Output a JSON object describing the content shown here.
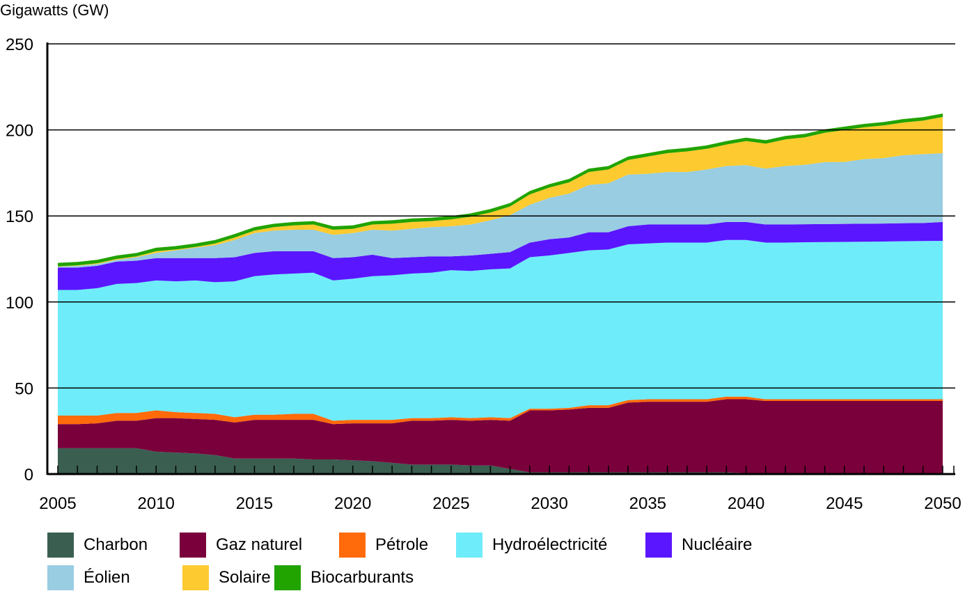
{
  "chart_data": {
    "type": "area",
    "stacked": true,
    "title": "",
    "xlabel": "",
    "ylabel": "Gigawatts (GW)",
    "xlim": [
      2005,
      2050
    ],
    "ylim": [
      0,
      250
    ],
    "grid": true,
    "legend_position": "bottom",
    "x_ticks": [
      "2005",
      "2010",
      "2015",
      "2020",
      "2025",
      "2030",
      "2035",
      "2040",
      "2045",
      "2050"
    ],
    "y_ticks": [
      "0",
      "50",
      "100",
      "150",
      "200",
      "250"
    ],
    "x": [
      2005,
      2006,
      2007,
      2008,
      2009,
      2010,
      2011,
      2012,
      2013,
      2014,
      2015,
      2016,
      2017,
      2018,
      2019,
      2020,
      2021,
      2022,
      2023,
      2024,
      2025,
      2026,
      2027,
      2028,
      2029,
      2030,
      2031,
      2032,
      2033,
      2034,
      2035,
      2036,
      2037,
      2038,
      2039,
      2040,
      2041,
      2042,
      2043,
      2044,
      2045,
      2046,
      2047,
      2048,
      2049,
      2050
    ],
    "series": [
      {
        "name": "Charbon",
        "color": "#3a5e50",
        "values": [
          15,
          15,
          15,
          15,
          15,
          13,
          12.5,
          12,
          11,
          9,
          9,
          9,
          9,
          8.5,
          8.5,
          8,
          7.5,
          6.5,
          5.5,
          5.5,
          5.5,
          5,
          5,
          3,
          1,
          1,
          1,
          1,
          1,
          1,
          1,
          1,
          1,
          1,
          1,
          0.5,
          0,
          0,
          0,
          0,
          0,
          0,
          0,
          0,
          0,
          0
        ]
      },
      {
        "name": "Gaz naturel",
        "color": "#7a003c",
        "values": [
          14,
          14,
          14.5,
          16,
          16,
          19.5,
          20,
          20,
          20.5,
          21,
          22.5,
          22.5,
          22.5,
          23,
          20.5,
          21.5,
          22,
          23,
          25.5,
          25.5,
          26,
          26,
          26.5,
          28,
          36,
          36,
          36.5,
          37.5,
          37.5,
          40.5,
          41,
          41,
          41,
          41,
          42.5,
          43,
          42.5,
          42.5,
          42.5,
          42.5,
          42.5,
          42.5,
          42.5,
          42.5,
          42.5,
          42.5
        ]
      },
      {
        "name": "Pétrole",
        "color": "#ff6a0a",
        "values": [
          5,
          5,
          4.5,
          4.5,
          4.5,
          4.5,
          3.5,
          3.5,
          3.5,
          3,
          3,
          3,
          3.5,
          3.5,
          2,
          2,
          2,
          2,
          1.5,
          1.5,
          1.5,
          1.5,
          1.5,
          1.5,
          1,
          1,
          1,
          1.5,
          1.5,
          1.5,
          1.5,
          1.5,
          1.5,
          1.5,
          1.5,
          1.5,
          1,
          1,
          1,
          1,
          1,
          1,
          1,
          1,
          1,
          1
        ]
      },
      {
        "name": "Hydroélectricité",
        "color": "#6eecf9",
        "values": [
          73,
          73,
          74,
          75,
          75.5,
          75.5,
          76,
          77,
          76.5,
          79,
          80.5,
          81.5,
          81.5,
          82,
          81.5,
          82,
          83.5,
          84,
          84,
          84.5,
          85.5,
          85.5,
          86,
          87,
          88,
          89,
          90,
          90,
          90.5,
          90.5,
          90.5,
          91,
          91,
          91,
          91,
          91,
          91,
          91,
          91.2,
          91.3,
          91.4,
          91.5,
          91.6,
          91.8,
          91.9,
          92
        ]
      },
      {
        "name": "Nucléaire",
        "color": "#5a16ff",
        "values": [
          13,
          13,
          13,
          13,
          13,
          13,
          13.5,
          13,
          14,
          14,
          13.5,
          13.5,
          13,
          12.5,
          13,
          12.5,
          12.5,
          10,
          9.5,
          9.5,
          8,
          9,
          9,
          9.5,
          8.5,
          9.5,
          9,
          10.5,
          10,
          10.5,
          11,
          10.5,
          10.5,
          10.5,
          10.5,
          10.5,
          10.5,
          10.5,
          10.5,
          10.5,
          10.5,
          10.5,
          10.5,
          10.5,
          10.5,
          11
        ]
      },
      {
        "name": "Éolien",
        "color": "#98cde2",
        "values": [
          0.5,
          1,
          1,
          1,
          2,
          3,
          4.5,
          6,
          7.5,
          10,
          11.5,
          12,
          12.5,
          12.5,
          13.5,
          14,
          14.5,
          16,
          16.5,
          17,
          17.5,
          18,
          19.5,
          21.5,
          22,
          24,
          25.5,
          27.5,
          28.5,
          30,
          29.5,
          30.5,
          30.5,
          32,
          32.5,
          33,
          32.5,
          34,
          34.5,
          36,
          36,
          37.5,
          38,
          39.5,
          40,
          40
        ]
      },
      {
        "name": "Solaire",
        "color": "#fdcb2f",
        "values": [
          0.2,
          0.3,
          0.5,
          0.5,
          0.5,
          1,
          0.5,
          0.5,
          1,
          1.5,
          1.5,
          2,
          2.5,
          3,
          3,
          2.5,
          3,
          4,
          4,
          3.5,
          4,
          4.5,
          4.5,
          5,
          6,
          6,
          6.5,
          7.5,
          8,
          8.5,
          10,
          11,
          12,
          12,
          12.5,
          14,
          14.5,
          15.5,
          16,
          17,
          18.5,
          18.5,
          19,
          19,
          19.5,
          21
        ]
      },
      {
        "name": "Biocarburants",
        "color": "#21a300",
        "values": [
          2,
          2,
          2,
          2,
          2,
          2,
          2,
          2,
          2,
          2,
          2,
          2,
          2,
          2,
          2,
          2,
          2,
          2,
          2,
          2,
          2,
          2,
          2,
          2,
          2,
          2,
          2,
          2,
          2,
          2,
          2,
          2,
          2,
          2,
          2,
          2,
          2,
          2,
          2,
          2,
          2,
          2,
          2,
          2,
          2,
          2
        ]
      }
    ]
  }
}
